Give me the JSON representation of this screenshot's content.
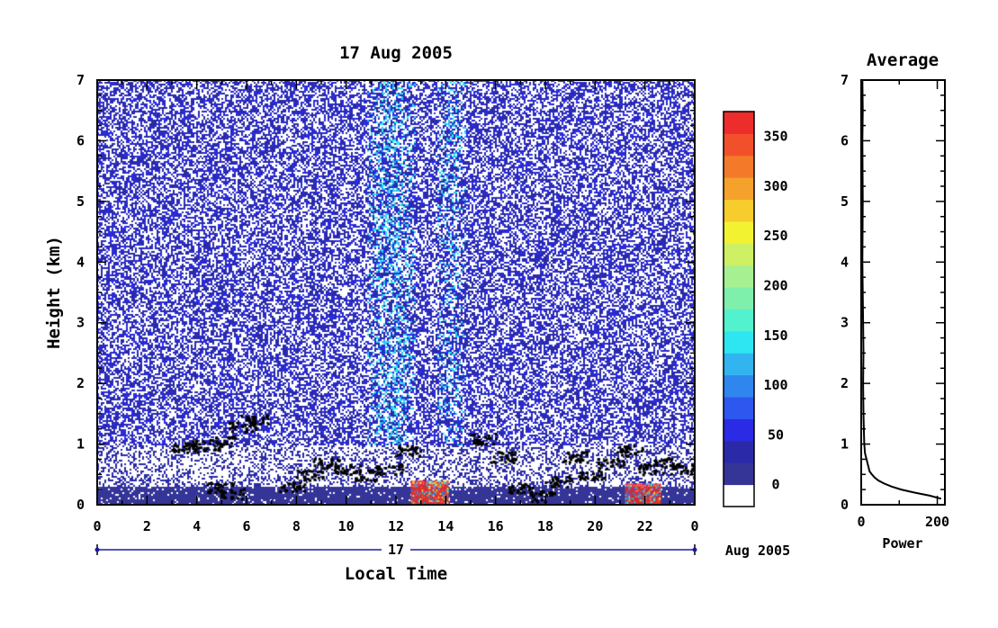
{
  "chart_data": [
    {
      "type": "heatmap",
      "title": "17 Aug 2005",
      "xlabel": "Local Time",
      "ylabel": "Height (km)",
      "xlim": [
        0,
        24
      ],
      "ylim": [
        0,
        7
      ],
      "x_ticks": [
        "0",
        "2",
        "4",
        "6",
        "8",
        "10",
        "12",
        "14",
        "16",
        "18",
        "20",
        "22",
        "0"
      ],
      "y_ticks": [
        "0",
        "1",
        "2",
        "3",
        "4",
        "5",
        "6",
        "7"
      ],
      "date_band": {
        "day": "17",
        "month_year": "Aug 2005"
      },
      "colorbar": {
        "range": [
          0,
          375
        ],
        "labels": [
          "0",
          "50",
          "100",
          "150",
          "200",
          "250",
          "300",
          "350"
        ],
        "colors": [
          "#ffffff",
          "#353598",
          "#2a2aa8",
          "#2b2be6",
          "#2e57ef",
          "#2f86ee",
          "#31b4ef",
          "#2ee6f2",
          "#52f2cf",
          "#7ef0ac",
          "#a6f091",
          "#cef064",
          "#f2f230",
          "#f7cc2d",
          "#f4a22b",
          "#f47a2a",
          "#f2502b",
          "#ed2c2c"
        ]
      },
      "features": [
        {
          "label": "strong echo",
          "x_range": [
            12.6,
            14.1
          ],
          "y_range": [
            0,
            0.4
          ],
          "value_range": [
            250,
            375
          ]
        },
        {
          "label": "strong echo",
          "x_range": [
            21.2,
            22.6
          ],
          "y_range": [
            0,
            0.35
          ],
          "value_range": [
            150,
            375
          ]
        }
      ]
    },
    {
      "type": "line",
      "title": "Average",
      "xlabel": "Power",
      "xlim": [
        0,
        220
      ],
      "ylim": [
        0,
        7
      ],
      "x_ticks": [
        "0",
        "200"
      ],
      "y_ticks": [
        "0",
        "1",
        "2",
        "3",
        "4",
        "5",
        "6",
        "7"
      ],
      "series": [
        {
          "x": [
            210,
            180,
            140,
            105,
            80,
            60,
            45,
            35,
            28,
            22,
            18,
            14,
            10,
            8,
            7,
            6,
            5,
            6,
            5,
            4,
            3,
            4,
            3,
            4,
            3
          ],
          "y": [
            0.1,
            0.15,
            0.2,
            0.25,
            0.3,
            0.35,
            0.4,
            0.45,
            0.5,
            0.55,
            0.65,
            0.75,
            0.85,
            1.0,
            1.2,
            1.5,
            2.0,
            2.5,
            3.0,
            3.5,
            4.0,
            5.0,
            6.0,
            6.5,
            7.0
          ]
        }
      ]
    }
  ]
}
